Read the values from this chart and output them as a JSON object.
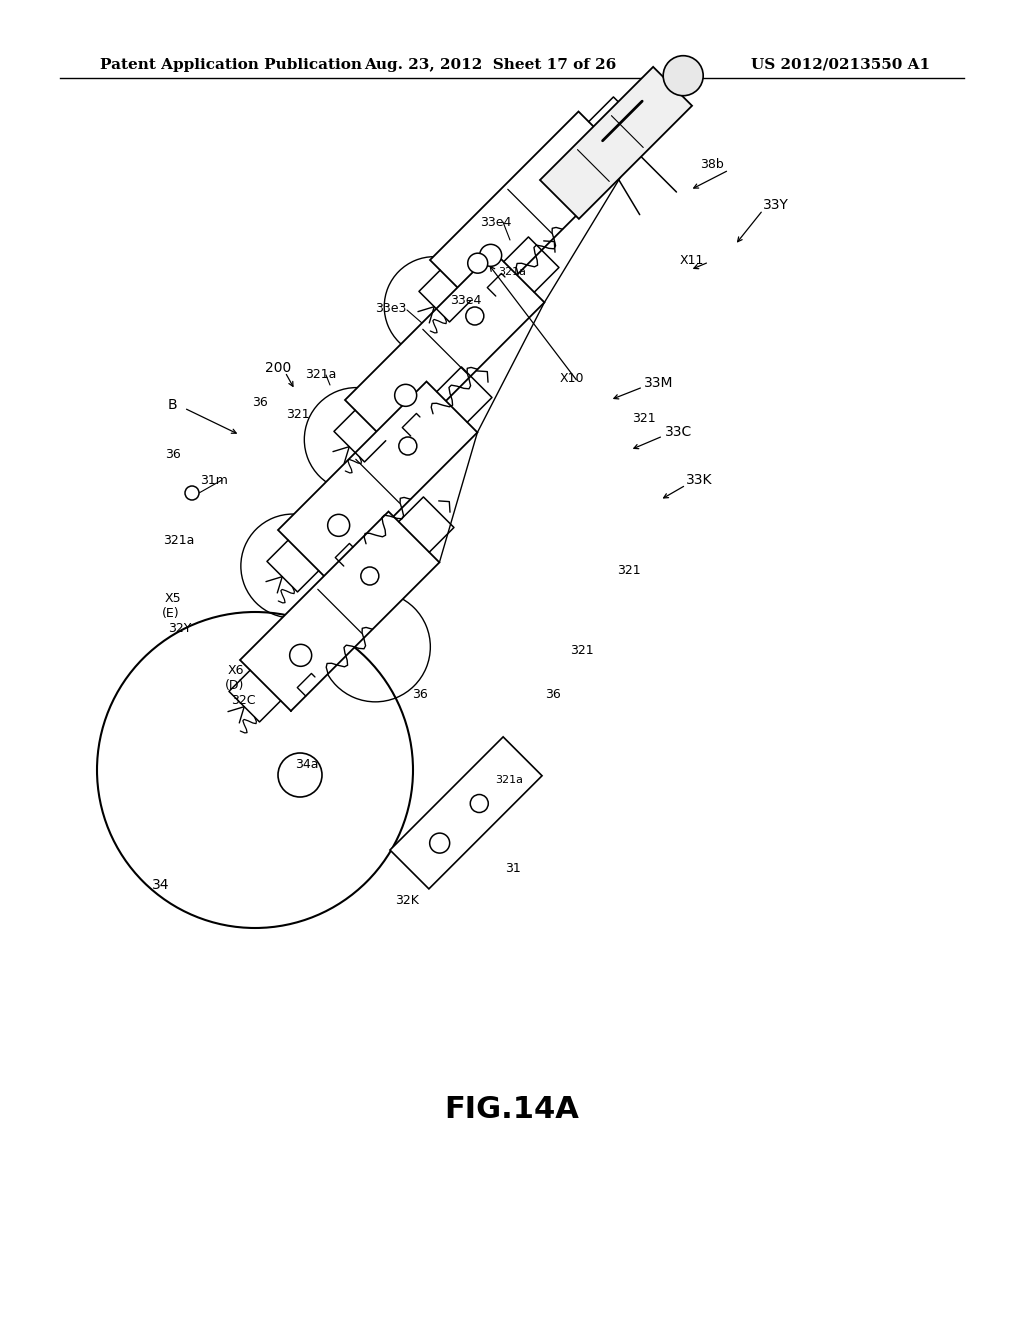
{
  "bg_color": "#ffffff",
  "header_left": "Patent Application Publication",
  "header_mid": "Aug. 23, 2012  Sheet 17 of 26",
  "header_right": "US 2012/0213550 A1",
  "figure_label": "FIG.14A",
  "header_fontsize": 11,
  "figure_fontsize": 22,
  "line_color": "#000000"
}
